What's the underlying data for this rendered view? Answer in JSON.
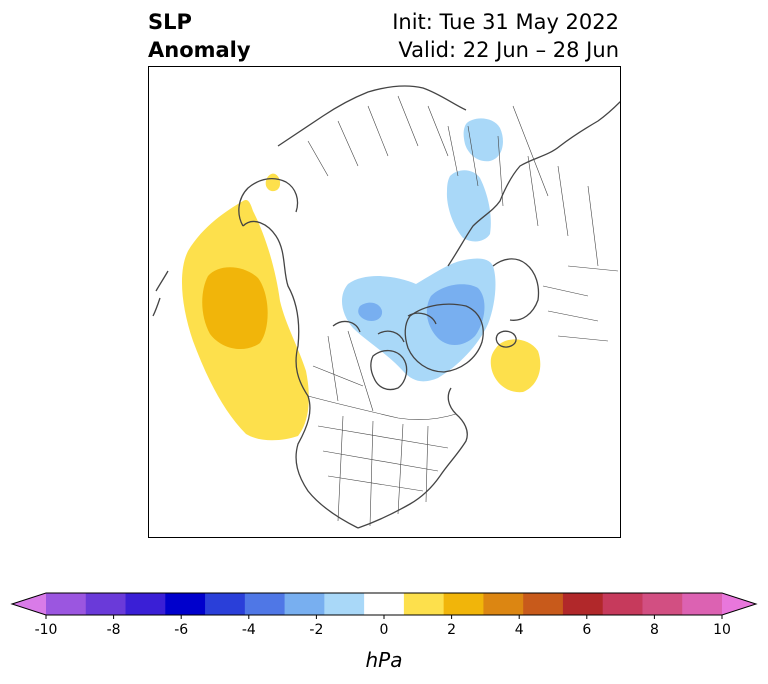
{
  "header": {
    "variable_line1": "SLP",
    "variable_line2": "Anomaly",
    "init_text": "Init: Tue 31 May 2022",
    "valid_text": "Valid: 22 Jun – 28 Jun"
  },
  "colorbar": {
    "unit": "hPa",
    "tick_labels": [
      "-10",
      "-8",
      "-6",
      "-4",
      "-2",
      "0",
      "2",
      "4",
      "6",
      "8",
      "10"
    ],
    "colors": [
      "#d97be8",
      "#9b56e0",
      "#6a3ad9",
      "#3a1fd6",
      "#0000cc",
      "#2a3fd9",
      "#4f77e6",
      "#78aff0",
      "#a9d8f8",
      "#ffffff",
      "#fde04c",
      "#f1b50a",
      "#dc8612",
      "#c85a1b",
      "#b1282a",
      "#c63a5c",
      "#d24f82",
      "#dc62b2",
      "#e877dc"
    ]
  },
  "map": {
    "projection": "north-polar-stereographic",
    "anomaly_fill": {
      "positive_weak": "#fde04c",
      "positive_moderate": "#f1b50a",
      "negative_weak": "#a9d8f8",
      "negative_moderate": "#78aff0"
    }
  }
}
